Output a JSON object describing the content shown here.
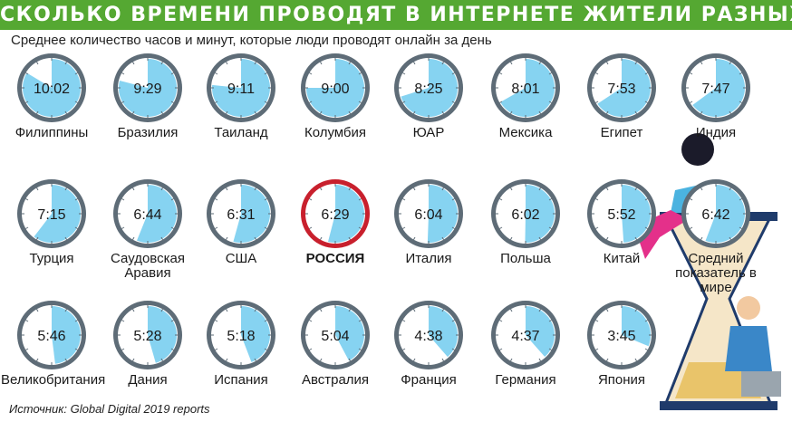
{
  "chart_data": {
    "type": "clock",
    "title": "СКОЛЬКО ВРЕМЕНИ ПРОВОДЯТ В ИНТЕРНЕТЕ ЖИТЕЛИ РАЗНЫХ СТРАН",
    "subtitle": "Среднее количество часов и минут, которые люди проводят онлайн за день",
    "source": "Источник: Global Digital 2019 reports",
    "categories": [
      "Филиппины",
      "Бразилия",
      "Таиланд",
      "Колумбия",
      "ЮАР",
      "Мексика",
      "Египет",
      "Индия",
      "Турция",
      "Саудовская Аравия",
      "США",
      "РОССИЯ",
      "Италия",
      "Польша",
      "Китай",
      "Великобритания",
      "Дания",
      "Испания",
      "Австралия",
      "Франция",
      "Германия",
      "Япония"
    ],
    "values": [
      602,
      569,
      551,
      540,
      505,
      481,
      473,
      467,
      435,
      404,
      391,
      389,
      364,
      362,
      352,
      346,
      328,
      318,
      304,
      278,
      277,
      225
    ],
    "value_labels": [
      "10:02",
      "9:29",
      "9:11",
      "9:00",
      "8:25",
      "8:01",
      "7:53",
      "7:47",
      "7:15",
      "6:44",
      "6:31",
      "6:29",
      "6:04",
      "6:02",
      "5:52",
      "5:46",
      "5:28",
      "5:18",
      "5:04",
      "4:38",
      "4:37",
      "3:45"
    ],
    "average": {
      "label": "Средний показатель в мире",
      "value": 402,
      "value_label": "6:42"
    },
    "highlight_index": 11,
    "color": "#86d3f1",
    "ring_color": "#5e6c77",
    "highlight_color": "#c8202d",
    "title_color": "#55a832"
  }
}
